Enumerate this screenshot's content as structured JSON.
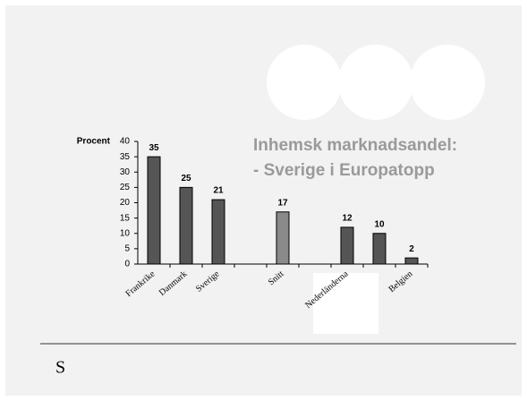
{
  "chart_data": {
    "type": "bar",
    "title": "Inhemsk  marknadsandel:",
    "subtitle": "- Sverige i Europatopp",
    "ylabel": "Procent",
    "categories": [
      "Frankrike",
      "Danmark",
      "Sverige",
      null,
      "Snitt",
      null,
      "Nederländerna",
      null,
      "Belgien"
    ],
    "values": [
      35,
      25,
      21,
      null,
      17,
      null,
      12,
      10,
      2
    ],
    "colors": [
      "#555555",
      "#555555",
      "#555555",
      null,
      "#8a8a8a",
      null,
      "#555555",
      "#555555",
      "#555555"
    ],
    "ylim": [
      0,
      40
    ],
    "yticks": [
      0,
      5,
      10,
      15,
      20,
      25,
      30,
      35,
      40
    ],
    "grid": false
  },
  "footer": "S"
}
